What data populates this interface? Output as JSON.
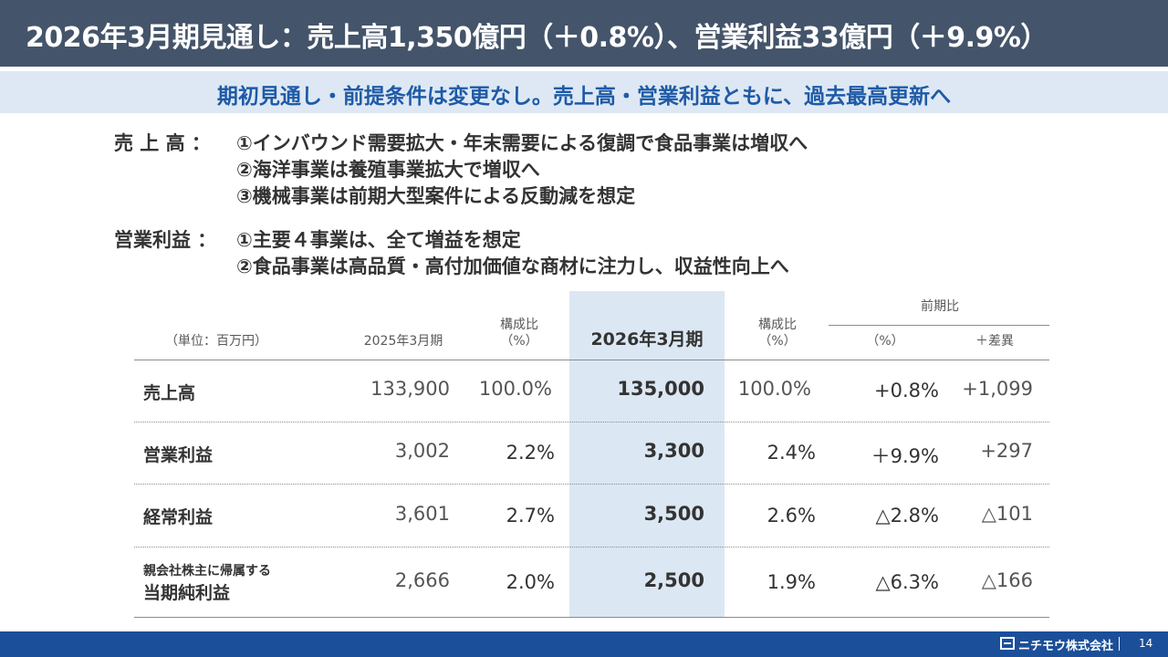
{
  "header": {
    "title": "2026年3月期見通し：売上高1,350億円（＋0.8%）、営業利益33億円（＋9.9%）",
    "subtitle": "期初見通し・前提条件は変更なし。売上高・営業利益ともに、過去最高更新へ"
  },
  "conditions": {
    "sales_label": "売 上 高 ：",
    "sales_items": [
      "①インバウンド需要拡大・年末需要による復調で食品事業は増収へ",
      "②海洋事業は養殖事業拡大で増収へ",
      "③機械事業は前期大型案件による反動減を想定"
    ],
    "op_label": "営業利益 ：",
    "op_items": [
      "①主要４事業は、全て増益を想定",
      "②食品事業は高品質・高付加価値な商材に注力し、収益性向上へ"
    ]
  },
  "table": {
    "unit": "（単位：百万円）",
    "col_prev": "2025年3月期",
    "col_ratio1": "構成比\n（%）",
    "col_curr": "2026年3月期",
    "col_ratio2": "構成比\n（%）",
    "col_yoy": "前期比",
    "col_pct": "（%）",
    "col_diff": "＋差異",
    "rows": [
      {
        "label": "売上高",
        "prev": "133,900",
        "ratio1": "100.0%",
        "curr": "135,000",
        "ratio2": "100.0%",
        "pct": "+0.8%",
        "diff": "+1,099"
      },
      {
        "label": "営業利益",
        "prev": "3,002",
        "ratio1": "2.2%",
        "curr": "3,300",
        "ratio2": "2.4%",
        "pct": "＋9.9%",
        "diff": "+297"
      },
      {
        "label": "経常利益",
        "prev": "3,601",
        "ratio1": "2.7%",
        "curr": "3,500",
        "ratio2": "2.6%",
        "pct": "△2.8%",
        "diff": "△101"
      },
      {
        "label_small": "親会社株主に帰属する",
        "label": "当期純利益",
        "prev": "2,666",
        "ratio1": "2.0%",
        "curr": "2,500",
        "ratio2": "1.9%",
        "pct": "△6.3%",
        "diff": "△166"
      }
    ]
  },
  "footer": {
    "company": "ニチモウ株式会社",
    "page": "14",
    "logo_icon": "nichimo-logo-icon"
  },
  "colors": {
    "title_bg": "#44546a",
    "subtitle_bg": "#dde8f4",
    "subtitle_text": "#1f5aa6",
    "highlight_col": "#dbe7f3",
    "footer_bg": "#1b4f99"
  }
}
